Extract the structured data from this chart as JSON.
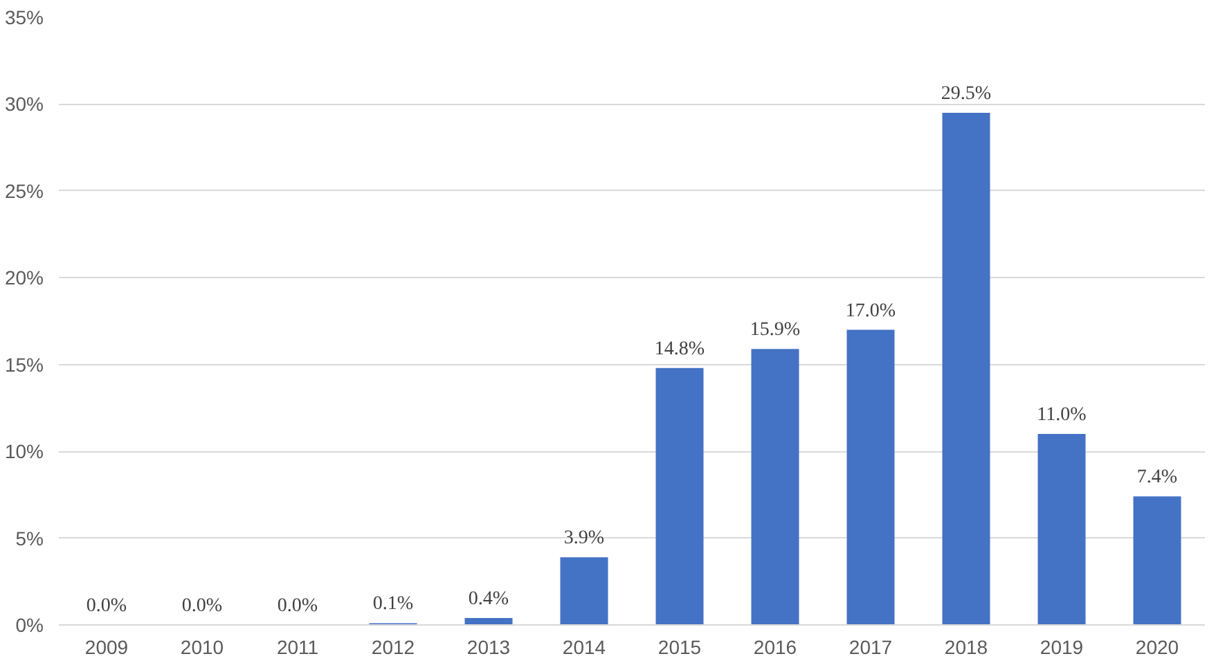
{
  "chart_data": {
    "type": "bar",
    "categories": [
      "2009",
      "2010",
      "2011",
      "2012",
      "2013",
      "2014",
      "2015",
      "2016",
      "2017",
      "2018",
      "2019",
      "2020"
    ],
    "values": [
      0.0,
      0.0,
      0.0,
      0.1,
      0.4,
      3.9,
      14.8,
      15.9,
      17.0,
      29.5,
      11.0,
      7.4
    ],
    "value_labels": [
      "0.0%",
      "0.0%",
      "0.0%",
      "0.1%",
      "0.4%",
      "3.9%",
      "14.8%",
      "15.9%",
      "17.0%",
      "29.5%",
      "11.0%",
      "7.4%"
    ],
    "color": "#4472c4",
    "ylim": [
      0,
      35
    ],
    "yticks": [
      {
        "value": 0,
        "label": "0%"
      },
      {
        "value": 5,
        "label": "5%"
      },
      {
        "value": 10,
        "label": "10%"
      },
      {
        "value": 15,
        "label": "15%"
      },
      {
        "value": 20,
        "label": "20%"
      },
      {
        "value": 25,
        "label": "25%"
      },
      {
        "value": 30,
        "label": "30%"
      },
      {
        "value": 35,
        "label": "35%"
      }
    ],
    "grid": "y"
  }
}
